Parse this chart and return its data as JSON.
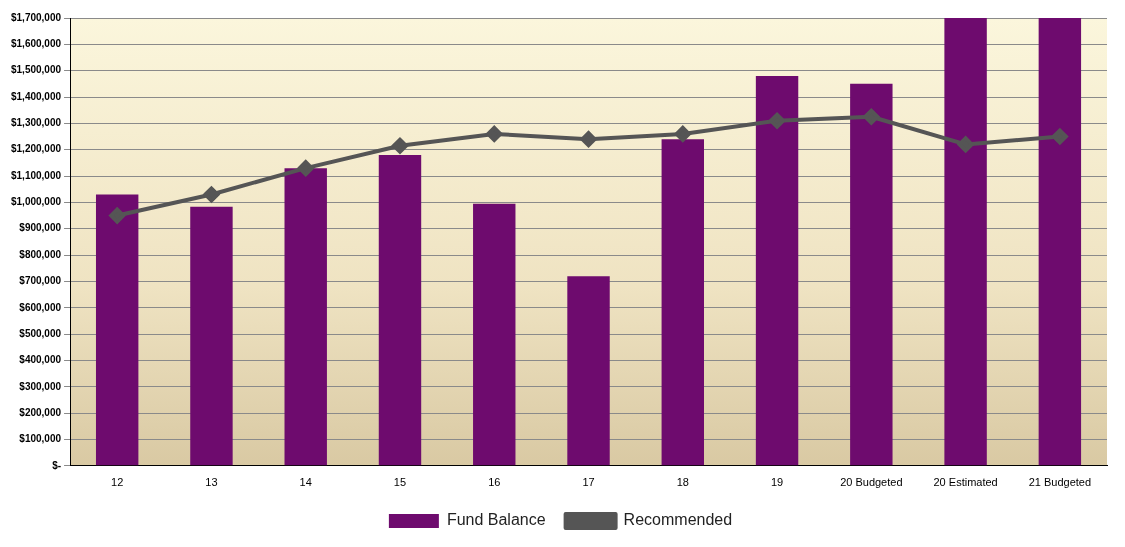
{
  "chart_data": {
    "type": "bar",
    "categories": [
      "12",
      "13",
      "14",
      "15",
      "16",
      "17",
      "18",
      "19",
      "20 Budgeted",
      "20 Estimated",
      "21 Budgeted"
    ],
    "series": [
      {
        "name": "Fund Balance",
        "color": "#6e0b6e",
        "values": [
          1030000,
          983000,
          1130000,
          1180000,
          995000,
          720000,
          1240000,
          1480000,
          1450000,
          1700000,
          1700000
        ]
      },
      {
        "name": "Recommended",
        "type": "line",
        "color": "#555555",
        "marker": "diamond",
        "values": [
          950000,
          1030000,
          1130000,
          1215000,
          1260000,
          1240000,
          1260000,
          1310000,
          1325000,
          1220000,
          1250000
        ]
      }
    ],
    "ylim": [
      0,
      1700000
    ],
    "yticks": [
      {
        "value": 0,
        "label": "$-"
      },
      {
        "value": 100000,
        "label": "$100,000"
      },
      {
        "value": 200000,
        "label": "$200,000"
      },
      {
        "value": 300000,
        "label": "$300,000"
      },
      {
        "value": 400000,
        "label": "$400,000"
      },
      {
        "value": 500000,
        "label": "$500,000"
      },
      {
        "value": 600000,
        "label": "$600,000"
      },
      {
        "value": 700000,
        "label": "$700,000"
      },
      {
        "value": 800000,
        "label": "$800,000"
      },
      {
        "value": 900000,
        "label": "$900,000"
      },
      {
        "value": 1000000,
        "label": "$1,000,000"
      },
      {
        "value": 1100000,
        "label": "$1,100,000"
      },
      {
        "value": 1200000,
        "label": "$1,200,000"
      },
      {
        "value": 1300000,
        "label": "$1,300,000"
      },
      {
        "value": 1400000,
        "label": "$1,400,000"
      },
      {
        "value": 1500000,
        "label": "$1,500,000"
      },
      {
        "value": 1600000,
        "label": "$1,600,000"
      },
      {
        "value": 1700000,
        "label": "$1,700,000"
      }
    ],
    "grid": "y",
    "legend": "bottom"
  }
}
